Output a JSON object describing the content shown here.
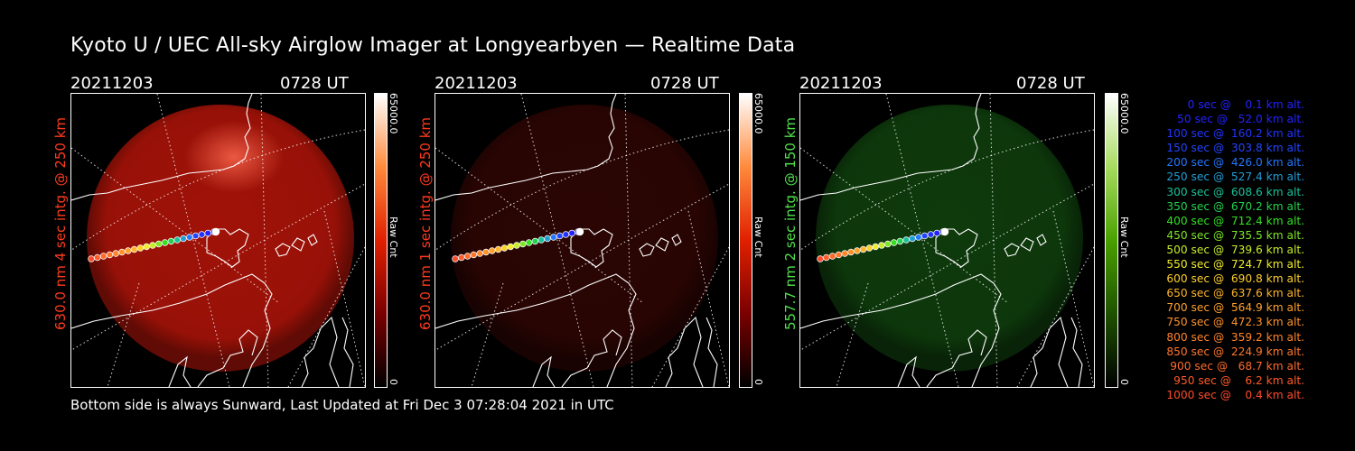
{
  "title": "Kyoto U / UEC All-sky Airglow Imager at Longyearbyen — Realtime Data",
  "footer": "Bottom side is always Sunward, Last Updated at Fri Dec  3 07:28:04 2021 in UTC",
  "panels": [
    {
      "date": "20211203",
      "time": "0728 UT",
      "vertical_label": "630.0 nm 4 sec intg. @ 250 km",
      "label_color": "#ff3a1e",
      "colorbar_max": "65000.0",
      "colorbar_unit": "Raw Cnt",
      "colorbar_zero": "0",
      "glow_color": "#a01208",
      "colorbar_gradient": [
        "#000000",
        "#7a0000",
        "#e02000",
        "#ff8a3c",
        "#ffffff"
      ]
    },
    {
      "date": "20211203",
      "time": "0728 UT",
      "vertical_label": "630.0 nm 1 sec intg. @ 250 km",
      "label_color": "#ff3a1e",
      "colorbar_max": "65000.0",
      "colorbar_unit": "Raw Cnt",
      "colorbar_zero": "0",
      "glow_color": "#2a0503",
      "colorbar_gradient": [
        "#000000",
        "#7a0000",
        "#e02000",
        "#ff8a3c",
        "#ffffff"
      ]
    },
    {
      "date": "20211203",
      "time": "0728 UT",
      "vertical_label": "557.7 nm 2 sec intg. @ 150 km",
      "label_color": "#4fe04a",
      "colorbar_max": "65000.0",
      "colorbar_unit": "Raw Cnt",
      "colorbar_zero": "0",
      "glow_color": "#0e3a0c",
      "colorbar_gradient": [
        "#000000",
        "#1f5200",
        "#4aa000",
        "#a8dc60",
        "#ffffff"
      ]
    }
  ],
  "legend": [
    {
      "text": "   0 sec @    0.1 km alt.",
      "color": "#2222ff"
    },
    {
      "text": "  50 sec @   52.0 km alt.",
      "color": "#2222ff"
    },
    {
      "text": " 100 sec @  160.2 km alt.",
      "color": "#2233ff"
    },
    {
      "text": " 150 sec @  303.8 km alt.",
      "color": "#2244ff"
    },
    {
      "text": " 200 sec @  426.0 km alt.",
      "color": "#2277ff"
    },
    {
      "text": " 250 sec @  527.4 km alt.",
      "color": "#1f9fd8"
    },
    {
      "text": " 300 sec @  608.6 km alt.",
      "color": "#18c29a"
    },
    {
      "text": " 350 sec @  670.2 km alt.",
      "color": "#22d24e"
    },
    {
      "text": " 400 sec @  712.4 km alt.",
      "color": "#33e022"
    },
    {
      "text": " 450 sec @  735.5 km alt.",
      "color": "#7ee625"
    },
    {
      "text": " 500 sec @  739.6 km alt.",
      "color": "#c6ec28"
    },
    {
      "text": " 550 sec @  724.7 km alt.",
      "color": "#f0ec2a"
    },
    {
      "text": " 600 sec @  690.8 km alt.",
      "color": "#ffd02a"
    },
    {
      "text": " 650 sec @  637.6 km alt.",
      "color": "#ffb42a"
    },
    {
      "text": " 700 sec @  564.9 km alt.",
      "color": "#ffa02a"
    },
    {
      "text": " 750 sec @  472.3 km alt.",
      "color": "#ff922a"
    },
    {
      "text": " 800 sec @  359.2 km alt.",
      "color": "#ff842a"
    },
    {
      "text": " 850 sec @  224.9 km alt.",
      "color": "#ff762a"
    },
    {
      "text": " 900 sec @   68.7 km alt.",
      "color": "#ff6a2a"
    },
    {
      "text": " 950 sec @    6.2 km alt.",
      "color": "#ff5a2a"
    },
    {
      "text": "1000 sec @    0.4 km alt.",
      "color": "#ff4a2a"
    }
  ]
}
